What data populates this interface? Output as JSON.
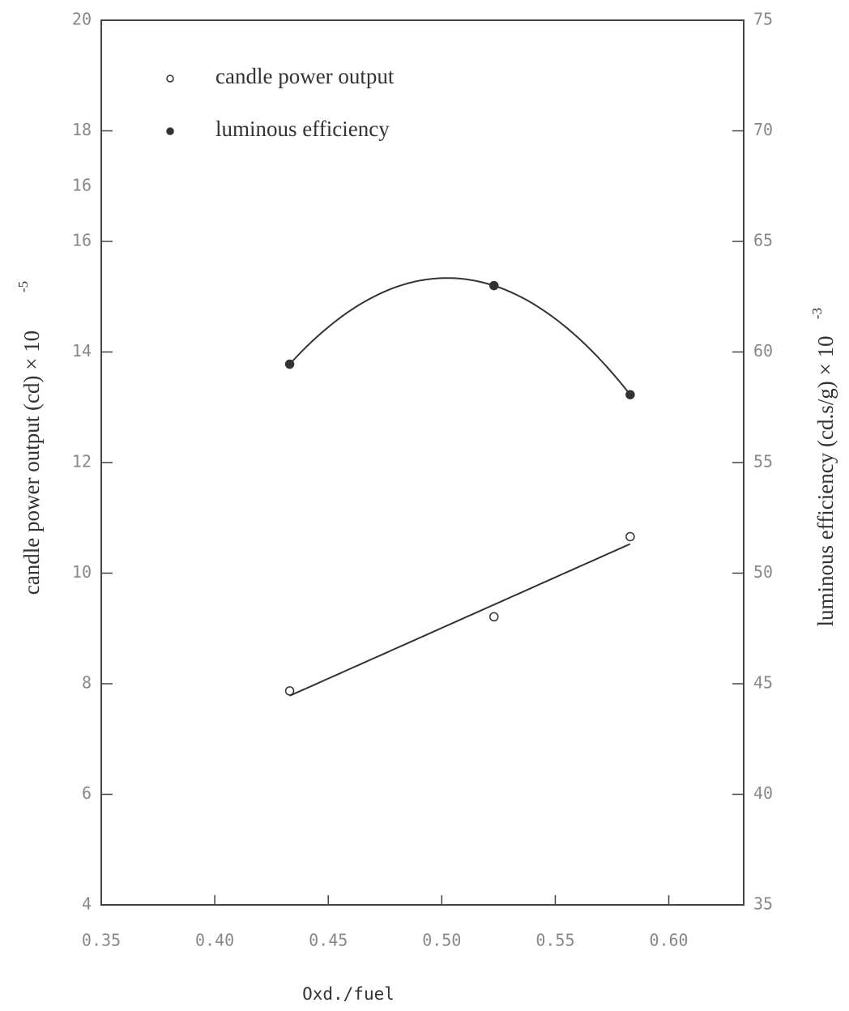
{
  "chart_data": {
    "type": "scatter",
    "x_label": "Oxd./fuel",
    "y_label": "candle power output  (cd) × 10",
    "y_label_exponent": "-5",
    "y2_label": "luminous efficiency (cd.s/g) × 10",
    "y2_label_exponent": "-3",
    "xlim": [
      0.35,
      0.633
    ],
    "xticks": [
      {
        "value": 0.35,
        "label": "0.35"
      },
      {
        "value": 0.4,
        "label": "0.40"
      },
      0.45,
      {
        "value": 0.5,
        "label": "0.50"
      },
      0.55,
      {
        "value": 0.6,
        "label": "0.60"
      }
    ],
    "ylim": [
      4,
      20
    ],
    "yticks": [
      4,
      6,
      8,
      10,
      12,
      14,
      16,
      18,
      20
    ],
    "y2lim": [
      35,
      75
    ],
    "y2ticks": [
      35,
      40,
      45,
      50,
      55,
      60,
      65,
      70,
      75
    ],
    "annotations": [
      {
        "text": "16",
        "y": 17
      }
    ],
    "legend": "upper left",
    "series": [
      {
        "name": "candle power output",
        "color": "#333333",
        "marker": "open",
        "fit": "linear",
        "x": [
          0.433,
          0.523,
          0.583
        ],
        "values": [
          7.87,
          9.21,
          10.66
        ]
      },
      {
        "name": "luminous efficiency",
        "color": "#333333",
        "marker": "filled",
        "fit": "quadratic",
        "axis": "y2",
        "x": [
          0.433,
          0.523,
          0.583
        ],
        "values": [
          59.45,
          63.0,
          58.07
        ]
      }
    ]
  }
}
